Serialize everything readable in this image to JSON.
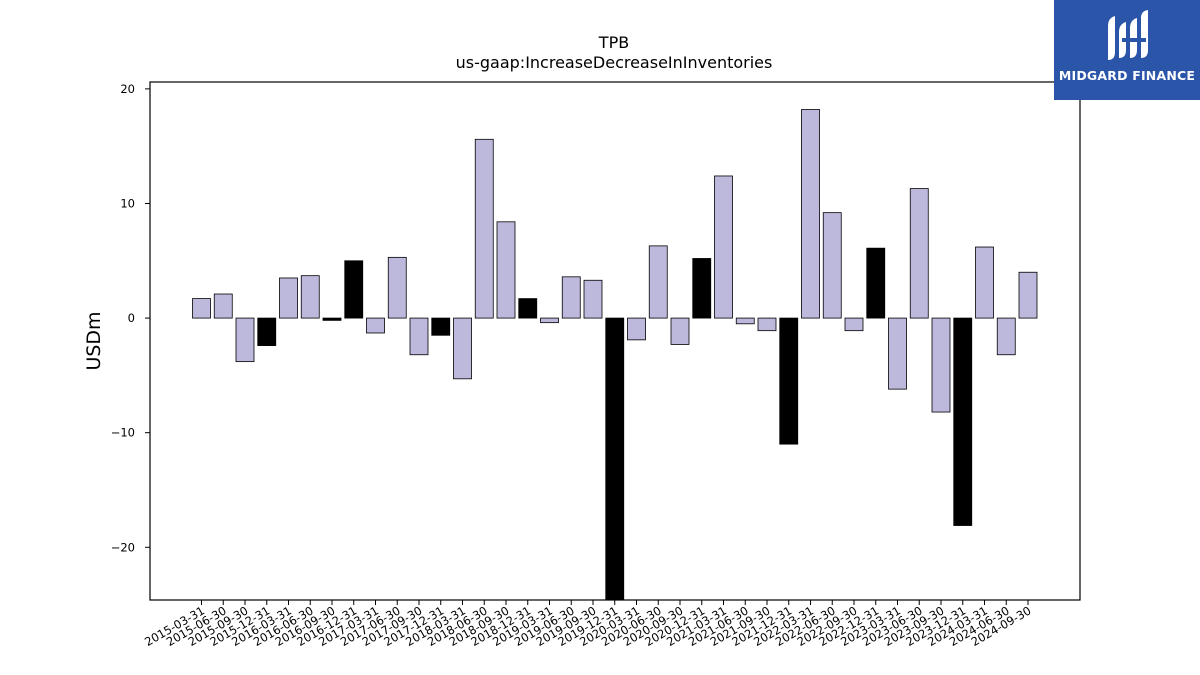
{
  "brand": {
    "name": "MIDGARD FINANCE",
    "color": "#2b55a8"
  },
  "chart_data": {
    "type": "bar",
    "title": "TPB",
    "subtitle": "us-gaap:IncreaseDecreaseInInventories",
    "xlabel": "",
    "ylabel": "USDm",
    "ylim": [
      -24.6,
      20.6
    ],
    "yticks": [
      -20,
      -10,
      0,
      10,
      20
    ],
    "grid": false,
    "categories": [
      "2015-03-31",
      "2015-06-30",
      "2015-09-30",
      "2015-12-31",
      "2016-03-31",
      "2016-06-30",
      "2016-09-30",
      "2016-12-31",
      "2017-03-31",
      "2017-06-30",
      "2017-09-30",
      "2017-12-31",
      "2018-03-31",
      "2018-06-30",
      "2018-09-30",
      "2018-12-31",
      "2019-03-31",
      "2019-06-30",
      "2019-09-30",
      "2019-12-31",
      "2020-03-31",
      "2020-06-30",
      "2020-09-30",
      "2020-12-31",
      "2021-03-31",
      "2021-06-30",
      "2021-09-30",
      "2021-12-31",
      "2022-03-31",
      "2022-06-30",
      "2022-09-30",
      "2022-12-31",
      "2023-03-31",
      "2023-06-30",
      "2023-09-30",
      "2023-12-31",
      "2024-03-31",
      "2024-06-30",
      "2024-09-30"
    ],
    "values": [
      1.7,
      2.1,
      -3.8,
      -2.4,
      3.5,
      3.7,
      -0.2,
      5.0,
      -1.3,
      5.3,
      -3.2,
      -1.5,
      -5.3,
      15.6,
      8.4,
      1.7,
      -0.4,
      3.6,
      3.3,
      -24.6,
      -1.9,
      6.3,
      -2.3,
      5.2,
      12.4,
      -0.5,
      -1.1,
      -11.0,
      18.2,
      9.2,
      -1.1,
      6.1,
      -6.2,
      11.3,
      -8.2,
      -18.1,
      6.2,
      -3.2,
      4.0
    ],
    "highlight": [
      false,
      false,
      false,
      true,
      false,
      false,
      true,
      true,
      false,
      false,
      false,
      true,
      false,
      false,
      false,
      true,
      false,
      false,
      false,
      true,
      false,
      false,
      false,
      true,
      false,
      false,
      false,
      true,
      false,
      false,
      false,
      true,
      false,
      false,
      false,
      true,
      false,
      false,
      false
    ],
    "colors": {
      "bar": "#bcb9dc",
      "highlight": "#000000",
      "edge": "#000000"
    }
  }
}
